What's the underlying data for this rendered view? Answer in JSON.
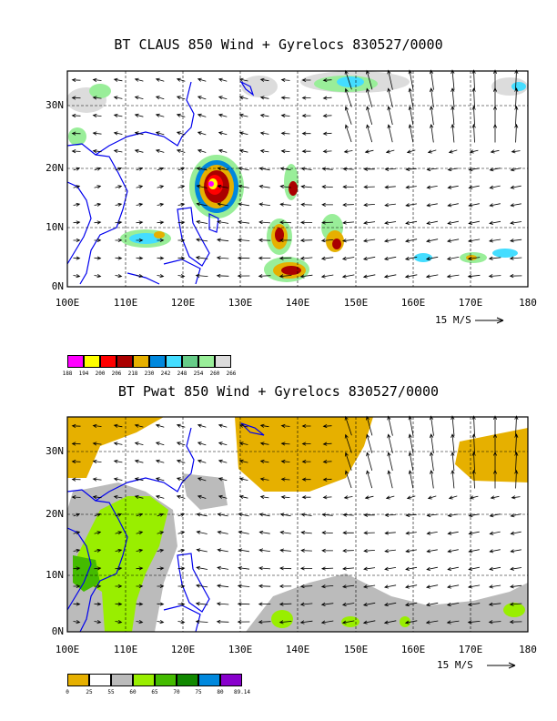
{
  "panels": [
    {
      "title": "BT CLAUS 850 Wind + Gyrelocs 830527/0000",
      "lat_labels": [
        "30N",
        "20N",
        "10N",
        "0N"
      ],
      "lon_labels": [
        "100E",
        "110E",
        "120E",
        "130E",
        "140E",
        "150E",
        "160E",
        "170E",
        "180"
      ],
      "scale_label": "15 M/S",
      "legend": {
        "colors": [
          "#ff00ff",
          "#ffff00",
          "#ff0000",
          "#aa0000",
          "#e6b000",
          "#0088dd",
          "#44ddff",
          "#66cc88",
          "#99ee99",
          "#dcdcdc"
        ],
        "labels": [
          "188",
          "194",
          "200",
          "206",
          "218",
          "230",
          "242",
          "248",
          "254",
          "260",
          "266"
        ]
      }
    },
    {
      "title": "BT Pwat 850 Wind + Gyrelocs 830527/0000",
      "lat_labels": [
        "30N",
        "20N",
        "10N",
        "0N"
      ],
      "lon_labels": [
        "100E",
        "110E",
        "120E",
        "130E",
        "140E",
        "150E",
        "160E",
        "170E",
        "180"
      ],
      "scale_label": "15 M/S",
      "legend": {
        "colors": [
          "#e6b000",
          "#ffffff",
          "#bbbbbb",
          "#99ee00",
          "#44bb00",
          "#118800",
          "#0088dd",
          "#8800cc"
        ],
        "labels": [
          "0",
          "25",
          "55",
          "60",
          "65",
          "70",
          "75",
          "80",
          "89.14"
        ]
      }
    }
  ],
  "colors": {
    "coast": "#0000ee",
    "grid": "#000000"
  }
}
